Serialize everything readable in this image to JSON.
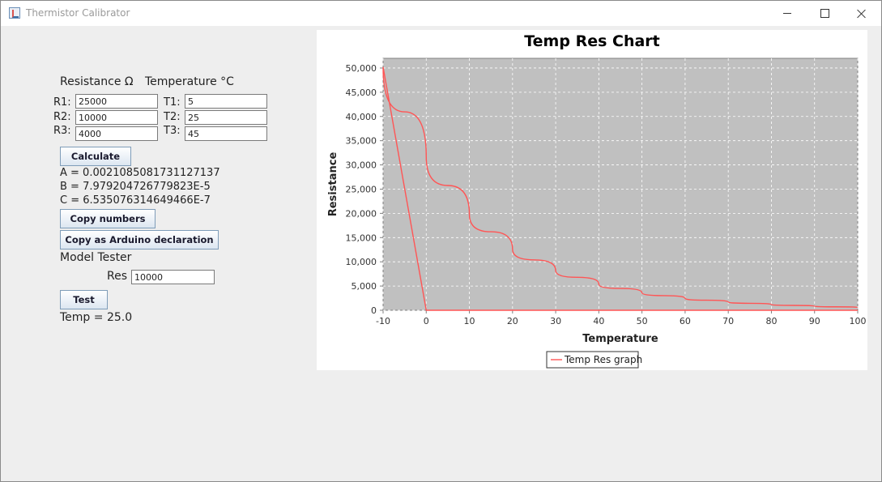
{
  "window": {
    "title": "Thermistor Calibrator"
  },
  "form": {
    "resistance_header": "Resistance Ω",
    "temperature_header": "Temperature °C",
    "rows": [
      {
        "r_label": "R1:",
        "r_value": "25000",
        "t_label": "T1:",
        "t_value": "5"
      },
      {
        "r_label": "R2:",
        "r_value": "10000",
        "t_label": "T2:",
        "t_value": "25"
      },
      {
        "r_label": "R3:",
        "r_value": "4000",
        "t_label": "T3:",
        "t_value": "45"
      }
    ],
    "calculate_label": "Calculate",
    "result_a": "A = 0.0021085081731127137",
    "result_b": "B = 7.979204726779823E-5",
    "result_c": "C = 6.535076314649466E-7",
    "copy_numbers_label": "Copy numbers",
    "copy_arduino_label": "Copy as Arduino declaration",
    "model_tester_label": "Model Tester",
    "res_label": "Res",
    "res_value": "10000",
    "test_label": "Test",
    "temp_result": "Temp = 25.0"
  },
  "chart_data": {
    "type": "line",
    "title": "Temp Res Chart",
    "xlabel": "Temperature",
    "ylabel": "Resistance",
    "xlim": [
      -10,
      100
    ],
    "ylim": [
      0,
      52000
    ],
    "x_ticks": [
      "-10",
      "0",
      "10",
      "20",
      "30",
      "40",
      "50",
      "60",
      "70",
      "80",
      "90",
      "100"
    ],
    "y_ticks": [
      "0",
      "5,000",
      "10,000",
      "15,000",
      "20,000",
      "25,000",
      "30,000",
      "35,000",
      "40,000",
      "45,000",
      "50,000"
    ],
    "grid": true,
    "legend_position": "bottom-center",
    "plot_background": "#c0c0c0",
    "series": [
      {
        "name": "Temp Res graph",
        "color": "#ff5555",
        "points": [
          [
            -10,
            50200
          ],
          [
            0,
            0
          ],
          [
            0,
            31700
          ],
          [
            10,
            19800
          ],
          [
            20,
            12600
          ],
          [
            30,
            8200
          ],
          [
            40,
            5400
          ],
          [
            50,
            3600
          ],
          [
            60,
            2450
          ],
          [
            70,
            1700
          ],
          [
            80,
            1180
          ],
          [
            90,
            830
          ],
          [
            100,
            590
          ]
        ]
      }
    ]
  }
}
